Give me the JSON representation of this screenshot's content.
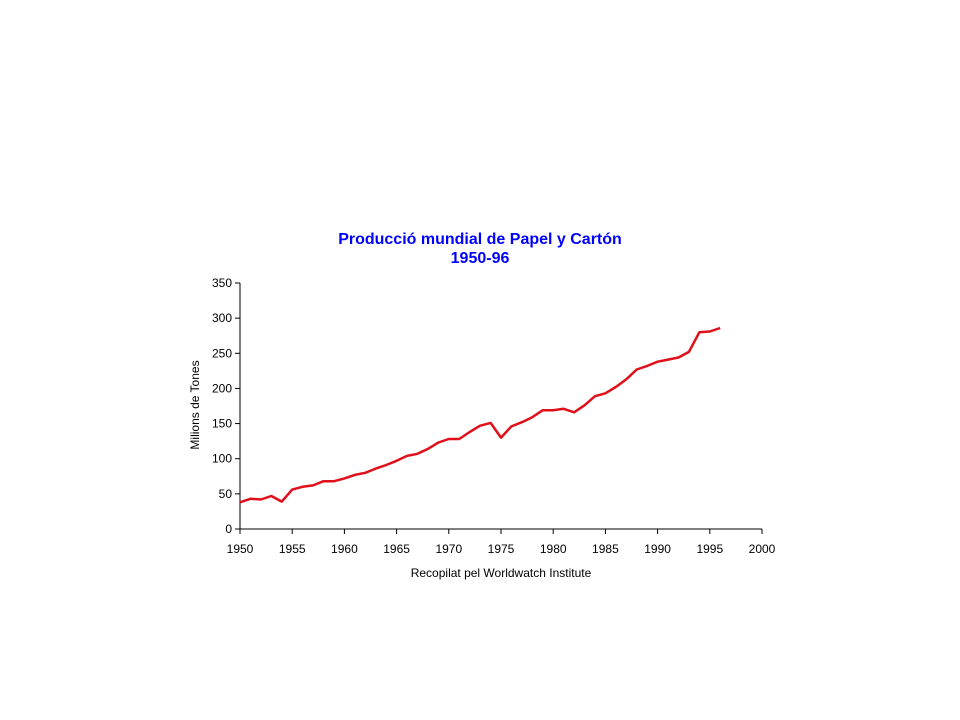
{
  "chart_data": {
    "type": "line",
    "title": "Producció mundial de Papel y Cartón",
    "subtitle": "1950-96",
    "xlabel": "Recopilat pel Worldwatch Institute",
    "ylabel": "Milions de Tones",
    "xlim": [
      1950,
      2000
    ],
    "ylim": [
      0,
      350
    ],
    "x_ticks": [
      1950,
      1955,
      1960,
      1965,
      1970,
      1975,
      1980,
      1985,
      1990,
      1995,
      2000
    ],
    "y_ticks": [
      0,
      50,
      100,
      150,
      200,
      250,
      300,
      350
    ],
    "grid": false,
    "legend": "none",
    "colors": {
      "title": "#0000ff",
      "series": "#e0101a",
      "axis": "#000000"
    },
    "series": [
      {
        "x": [
          1950,
          1951,
          1952,
          1953,
          1954,
          1955,
          1956,
          1957,
          1958,
          1959,
          1960,
          1961,
          1962,
          1963,
          1964,
          1965,
          1966,
          1967,
          1968,
          1969,
          1970,
          1971,
          1972,
          1973,
          1974,
          1975,
          1976,
          1977,
          1978,
          1979,
          1980,
          1981,
          1982,
          1983,
          1984,
          1985,
          1986,
          1987,
          1988,
          1989,
          1990,
          1991,
          1992,
          1993,
          1994,
          1995,
          1996
        ],
        "values": [
          38,
          43,
          42,
          47,
          39,
          56,
          60,
          62,
          68,
          68,
          72,
          77,
          80,
          86,
          91,
          97,
          104,
          107,
          114,
          123,
          128,
          128,
          138,
          147,
          151,
          130,
          146,
          152,
          159,
          169,
          169,
          171,
          166,
          176,
          189,
          193,
          202,
          213,
          227,
          232,
          238,
          241,
          244,
          252,
          280,
          281,
          286
        ]
      }
    ]
  }
}
